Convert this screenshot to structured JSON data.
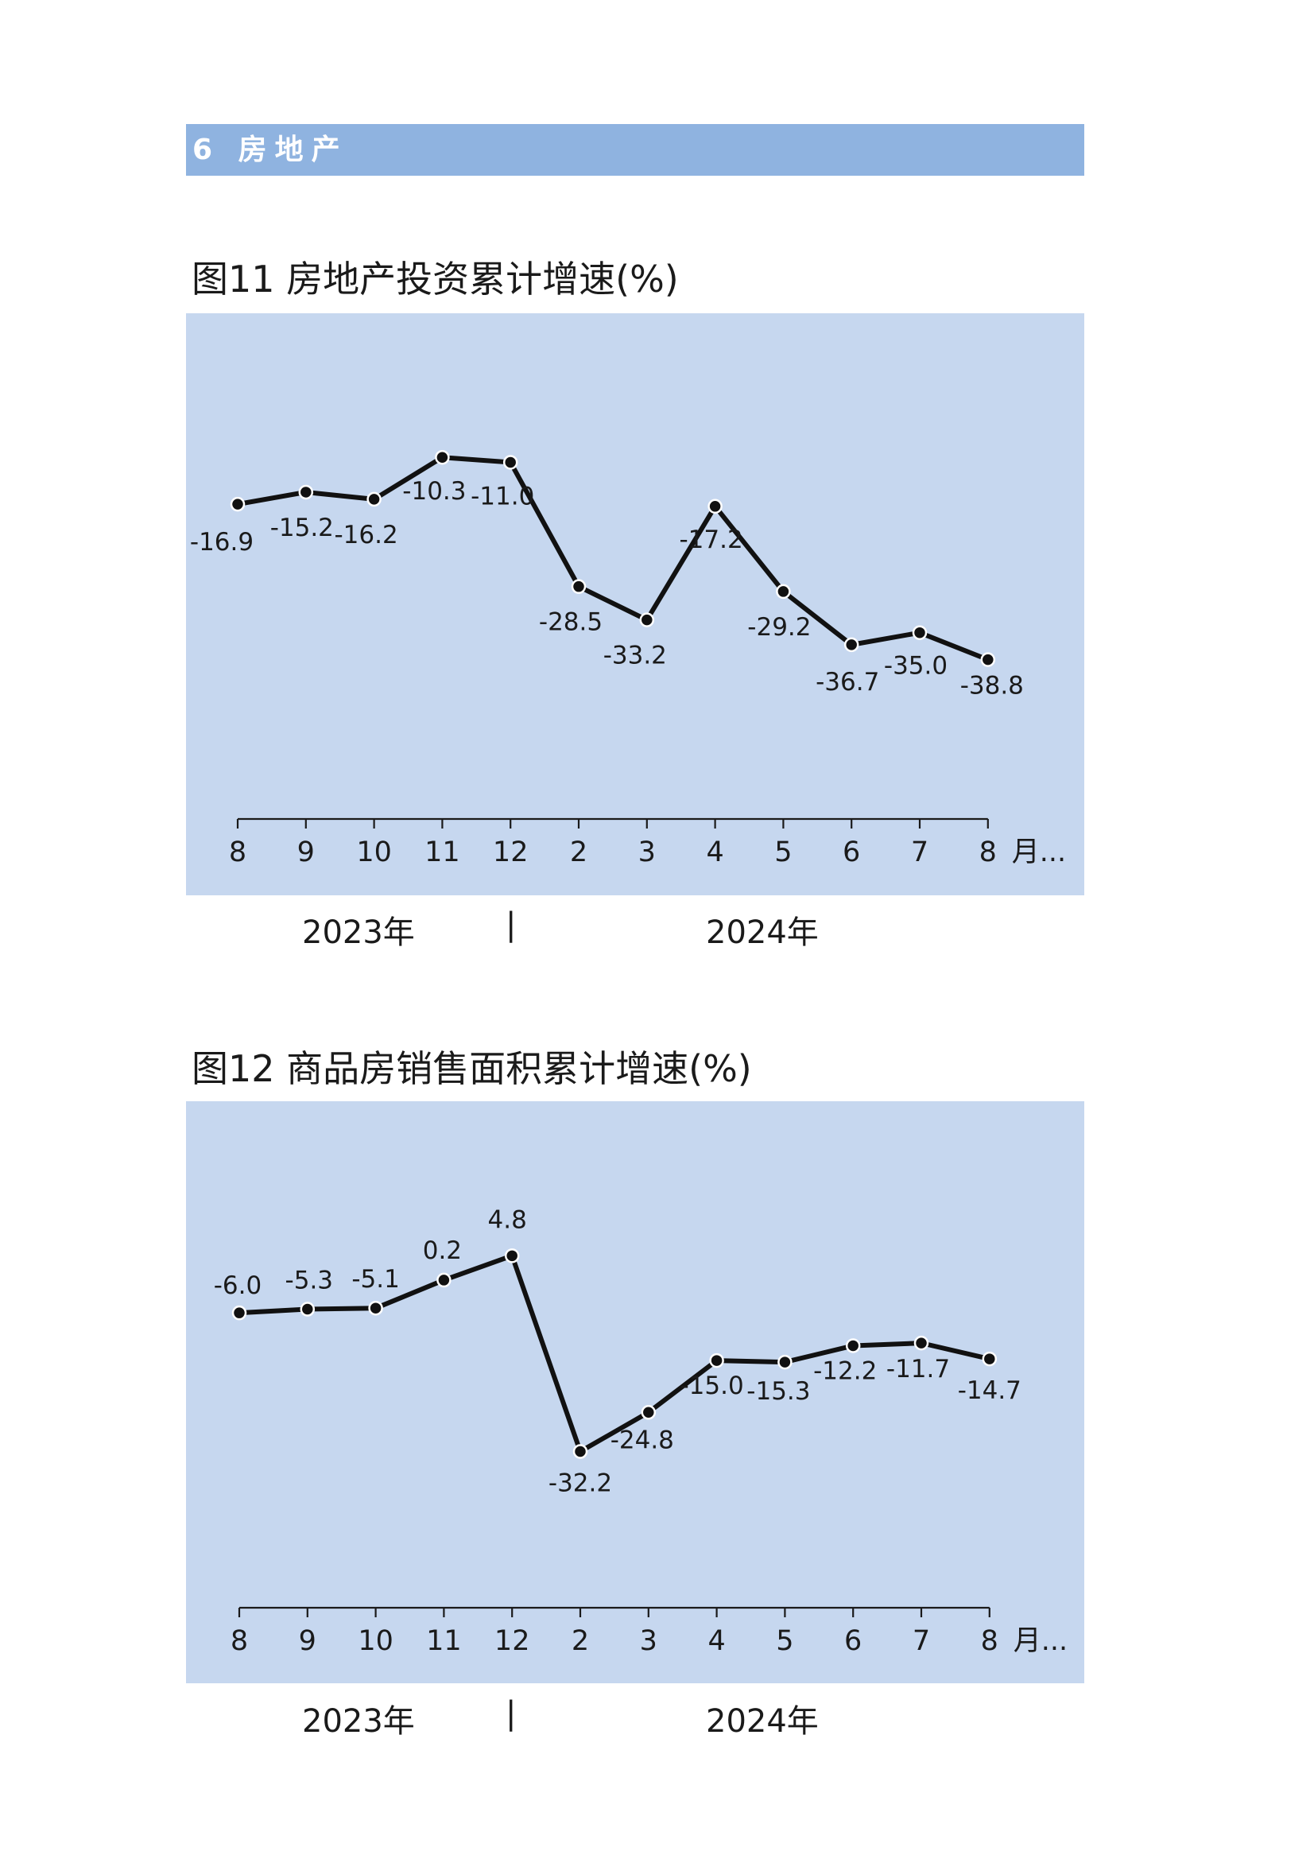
{
  "section": {
    "label": "6 房地产"
  },
  "charts": [
    {
      "title": "图11  房地产投资累计增速(%)",
      "year_left": "2023年",
      "year_right": "2024年",
      "separator": "|",
      "chart_data": {
        "type": "line",
        "title": "房地产投资累计增速(%)",
        "categories": [
          "8",
          "9",
          "10",
          "11",
          "12",
          "2",
          "3",
          "4",
          "5",
          "6",
          "7",
          "8"
        ],
        "x_unit": "月...",
        "series": [
          {
            "values": [
              -16.9,
              -15.2,
              -16.2,
              -10.3,
              -11.0,
              -28.5,
              -33.2,
              -17.2,
              -29.2,
              -36.7,
              -35.0,
              -38.8
            ]
          }
        ],
        "ylim": [
          -72,
          10
        ],
        "grid": false,
        "years": [
          "2023年",
          "2024年"
        ]
      }
    },
    {
      "title": "图12  商品房销售面积累计增速(%)",
      "year_left": "2023年",
      "year_right": "2024年",
      "separator": "|",
      "chart_data": {
        "type": "line",
        "title": "商品房销售面积累计增速(%)",
        "categories": [
          "8",
          "9",
          "10",
          "11",
          "12",
          "2",
          "3",
          "4",
          "5",
          "6",
          "7",
          "8"
        ],
        "x_unit": "月...",
        "series": [
          {
            "values": [
              -6.0,
              -5.3,
              -5.1,
              0.2,
              4.8,
              -32.2,
              -24.8,
              -15.0,
              -15.3,
              -12.2,
              -11.7,
              -14.7
            ]
          }
        ],
        "ylim": [
          -76,
          34
        ],
        "grid": false,
        "years": [
          "2023年",
          "2024年"
        ]
      }
    }
  ],
  "colors": {
    "band": "#8fb3e0",
    "plot_bg": "#c6d7ef",
    "line": "#111111"
  }
}
